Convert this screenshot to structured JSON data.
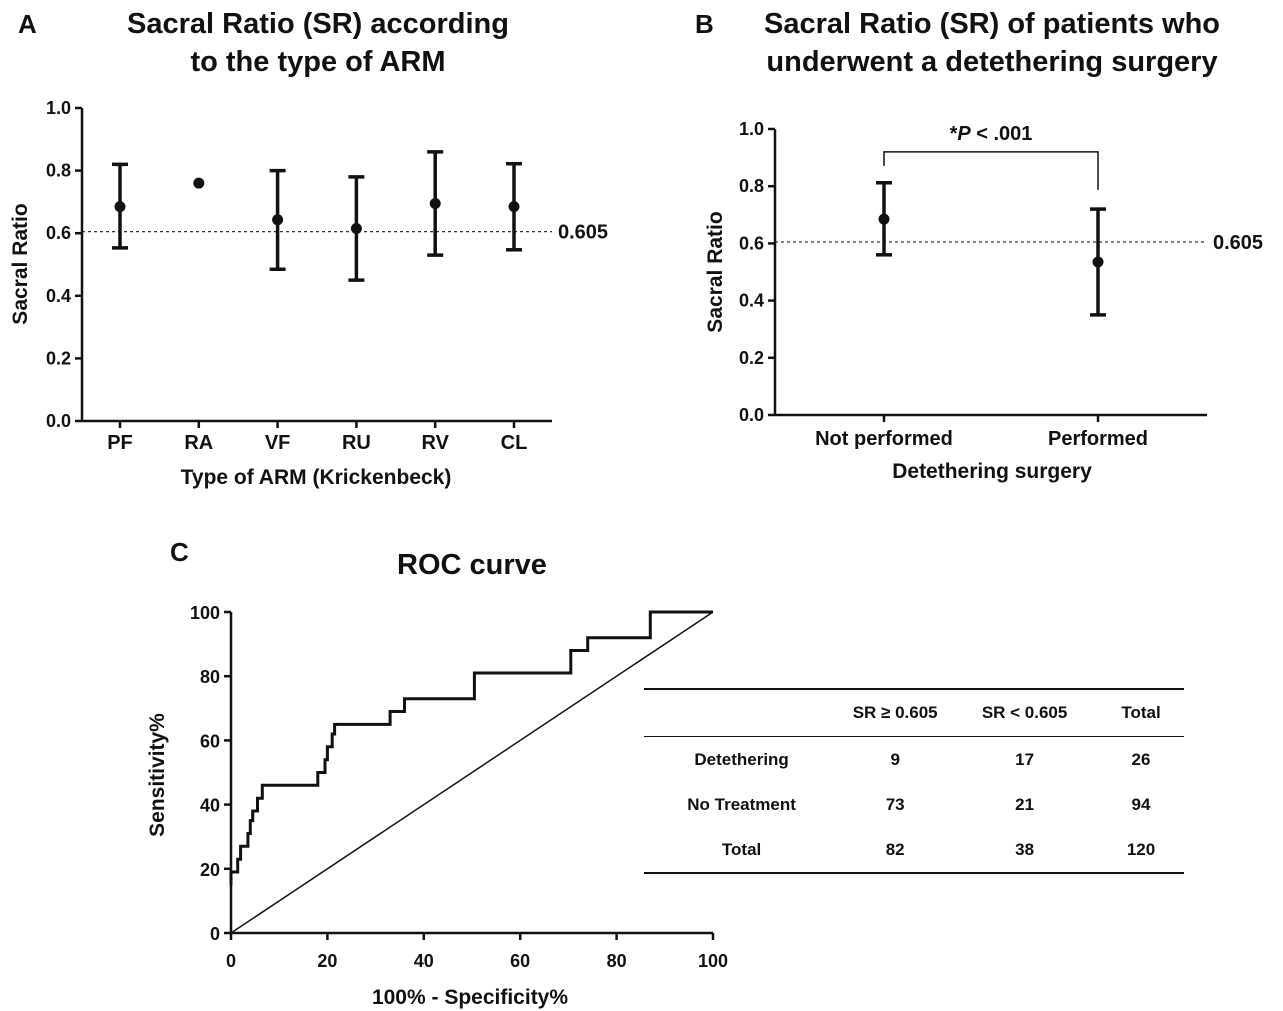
{
  "chart_data": [
    {
      "panel": "A",
      "type": "scatter",
      "title": [
        "Sacral Ratio (SR) according",
        "to the type of ARM"
      ],
      "xlabel": "Type of ARM (Krickenbeck)",
      "ylabel": "Sacral Ratio",
      "ylim": [
        0,
        1.0
      ],
      "yticks": [
        0.0,
        0.2,
        0.4,
        0.6,
        0.8,
        1.0
      ],
      "reference_line": {
        "value": 0.605,
        "label": "0.605"
      },
      "categories": [
        "PF",
        "RA",
        "VF",
        "RU",
        "RV",
        "CL"
      ],
      "means": [
        0.685,
        0.76,
        0.643,
        0.615,
        0.695,
        0.685
      ],
      "lower": [
        0.553,
        null,
        0.485,
        0.45,
        0.53,
        0.547
      ],
      "upper": [
        0.82,
        null,
        0.8,
        0.78,
        0.86,
        0.822
      ]
    },
    {
      "panel": "B",
      "type": "scatter",
      "title": [
        "Sacral Ratio (SR) of patients who",
        "underwent a detethering surgery"
      ],
      "xlabel": "Detethering surgery",
      "ylabel": "Sacral Ratio",
      "ylim": [
        0,
        1.0
      ],
      "yticks": [
        0.0,
        0.2,
        0.4,
        0.6,
        0.8,
        1.0
      ],
      "reference_line": {
        "value": 0.605,
        "label": "0.605"
      },
      "categories": [
        "Not performed",
        "Performed"
      ],
      "means": [
        0.685,
        0.535
      ],
      "lower": [
        0.56,
        0.35
      ],
      "upper": [
        0.812,
        0.72
      ],
      "significance": {
        "text_prefix": "*",
        "text_p": "P",
        "text_suffix": " < .001",
        "bracket_y": 0.92
      }
    },
    {
      "panel": "C",
      "type": "line",
      "title": "ROC curve",
      "xlabel": "100%  - Specificity%",
      "ylabel": "Sensitivity%",
      "xlim": [
        0,
        100
      ],
      "ylim": [
        0,
        100
      ],
      "xticks": [
        0,
        20,
        40,
        60,
        80,
        100
      ],
      "yticks": [
        0,
        20,
        40,
        60,
        80,
        100
      ],
      "reference_diagonal": [
        [
          0,
          0
        ],
        [
          100,
          100
        ]
      ],
      "roc_points": [
        [
          0,
          15
        ],
        [
          0,
          19
        ],
        [
          1.4,
          19
        ],
        [
          1.4,
          23
        ],
        [
          2,
          23
        ],
        [
          2,
          27
        ],
        [
          3.5,
          27
        ],
        [
          3.5,
          31
        ],
        [
          4,
          31
        ],
        [
          4,
          35
        ],
        [
          4.5,
          35
        ],
        [
          4.5,
          38
        ],
        [
          5.5,
          38
        ],
        [
          5.5,
          42
        ],
        [
          6.5,
          42
        ],
        [
          6.5,
          46
        ],
        [
          18,
          46
        ],
        [
          18,
          50
        ],
        [
          19.5,
          50
        ],
        [
          19.5,
          54
        ],
        [
          20,
          54
        ],
        [
          20,
          58
        ],
        [
          21,
          58
        ],
        [
          21,
          62
        ],
        [
          21.5,
          62
        ],
        [
          21.5,
          65
        ],
        [
          33,
          65
        ],
        [
          33,
          69
        ],
        [
          36,
          69
        ],
        [
          36,
          73
        ],
        [
          50.5,
          73
        ],
        [
          50.5,
          81
        ],
        [
          70.5,
          81
        ],
        [
          70.5,
          88
        ],
        [
          74,
          88
        ],
        [
          74,
          92
        ],
        [
          87,
          92
        ],
        [
          87,
          100
        ],
        [
          100,
          100
        ]
      ]
    }
  ],
  "figure": {
    "panel_letters": [
      "A",
      "B",
      "C"
    ]
  },
  "contingency_table": {
    "headers": [
      "",
      "SR ≥ 0.605",
      "SR < 0.605",
      "Total"
    ],
    "rows": [
      [
        "Detethering",
        "9",
        "17",
        "26"
      ],
      [
        "No Treatment",
        "73",
        "21",
        "94"
      ],
      [
        "Total",
        "82",
        "38",
        "120"
      ]
    ]
  }
}
